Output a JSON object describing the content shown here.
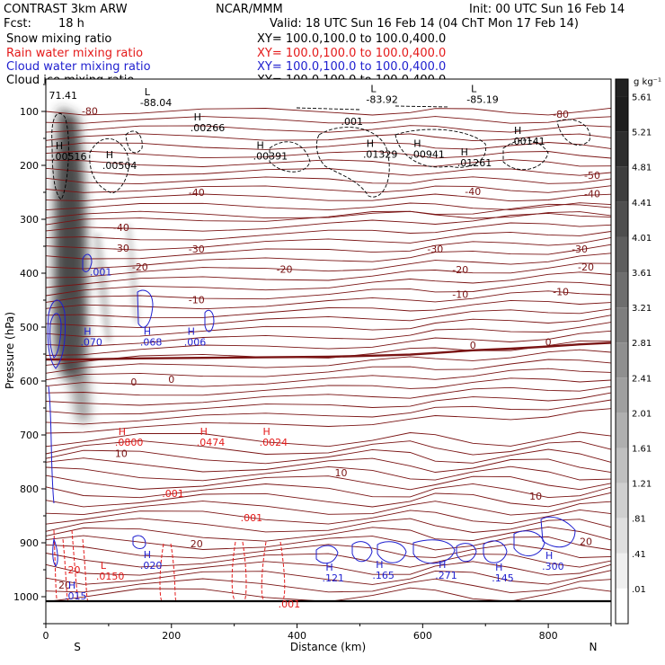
{
  "header": {
    "model": "CONTRAST   3km ARW",
    "org": "NCAR/MMM",
    "init": "Init: 00 UTC Sun 16 Feb 14",
    "fcst_label": "Fcst:",
    "fcst_value": "18 h",
    "valid": "Valid: 18 UTC Sun 16 Feb 14 (04 ChT Mon 17 Feb 14)"
  },
  "fields": [
    {
      "name": "Snow mixing ratio",
      "color": "#000000",
      "xy": "",
      "series_key": "snow"
    },
    {
      "name": "Rain water mixing ratio",
      "color": "#e41a1a",
      "xy": "XY=  100.0,100.0  to  100.0,400.0",
      "series_key": "rain"
    },
    {
      "name": "Cloud water mixing ratio",
      "color": "#1f1fcf",
      "xy": "XY=  100.0,100.0  to  100.0,400.0",
      "series_key": "cloud_water"
    },
    {
      "name": "Cloud ice mixing ratio",
      "color": "#000000",
      "xy": "XY=  100.0,100.0  to  100.0,400.0",
      "series_key": "cloud_ice"
    }
  ],
  "first_xy": "XY=  100.0,100.0  to  100.0,400.0",
  "colors": {
    "temperature": "#7a1414",
    "rain": "#e41a1a",
    "cloud_water": "#1f1fcf",
    "cloud_ice": "#000000",
    "terrain": "#000000",
    "snow_shade": "#333333"
  },
  "chart_data": {
    "type": "cross-section",
    "xlabel": "Distance (km)",
    "ylabel": "Pressure (hPa)",
    "x_range": [
      0,
      900
    ],
    "y_range": [
      1050,
      40
    ],
    "x_ticks": [
      0,
      200,
      400,
      600,
      800
    ],
    "y_ticks": [
      100,
      200,
      300,
      400,
      500,
      600,
      700,
      800,
      900,
      1000
    ],
    "x_end_labels": {
      "left": "S",
      "right": "N"
    },
    "colorbar": {
      "units": "g kg⁻¹",
      "levels": [
        "5.61",
        "5.21",
        "4.81",
        "4.41",
        "4.01",
        "3.61",
        "3.21",
        "2.81",
        "2.41",
        "2.01",
        "1.61",
        "1.21",
        ".81",
        ".41",
        ".01"
      ]
    },
    "temperature_labels": [
      {
        "x": 70,
        "p": 106,
        "text": "-80"
      },
      {
        "x": 820,
        "p": 112,
        "text": "-80"
      },
      {
        "x": 120,
        "p": 322,
        "text": "-40"
      },
      {
        "x": 240,
        "p": 257,
        "text": "-40"
      },
      {
        "x": 680,
        "p": 255,
        "text": "-40"
      },
      {
        "x": 870,
        "p": 259,
        "text": "-40"
      },
      {
        "x": 870,
        "p": 225,
        "text": "-50"
      },
      {
        "x": 120,
        "p": 360,
        "text": "-30"
      },
      {
        "x": 240,
        "p": 362,
        "text": "-30"
      },
      {
        "x": 620,
        "p": 362,
        "text": "-30"
      },
      {
        "x": 850,
        "p": 362,
        "text": "-30"
      },
      {
        "x": 150,
        "p": 395,
        "text": "-20"
      },
      {
        "x": 380,
        "p": 399,
        "text": "-20"
      },
      {
        "x": 660,
        "p": 400,
        "text": "-20"
      },
      {
        "x": 860,
        "p": 395,
        "text": "-20"
      },
      {
        "x": 240,
        "p": 456,
        "text": "-10"
      },
      {
        "x": 660,
        "p": 446,
        "text": "-10"
      },
      {
        "x": 820,
        "p": 441,
        "text": "-10"
      },
      {
        "x": 680,
        "p": 540,
        "text": "0"
      },
      {
        "x": 800,
        "p": 534,
        "text": "0"
      },
      {
        "x": 140,
        "p": 608,
        "text": "0"
      },
      {
        "x": 200,
        "p": 603,
        "text": "0"
      },
      {
        "x": 120,
        "p": 741,
        "text": "10"
      },
      {
        "x": 470,
        "p": 777,
        "text": "10"
      },
      {
        "x": 780,
        "p": 820,
        "text": "10"
      },
      {
        "x": 240,
        "p": 908,
        "text": "20"
      },
      {
        "x": 860,
        "p": 904,
        "text": "20"
      },
      {
        "x": 30,
        "p": 985,
        "text": "20"
      }
    ],
    "highs": [
      {
        "field": "cloud_ice",
        "x": 230,
        "p": 137,
        "label": ".00266"
      },
      {
        "field": "cloud_ice",
        "x": 10,
        "p": 190,
        "label": ".00516"
      },
      {
        "field": "cloud_ice",
        "x": 90,
        "p": 207,
        "label": ".00504"
      },
      {
        "field": "cloud_ice",
        "x": 330,
        "p": 189,
        "label": ".00391"
      },
      {
        "field": "cloud_ice",
        "x": 505,
        "p": 186,
        "label": ".01329"
      },
      {
        "field": "cloud_ice",
        "x": 580,
        "p": 186,
        "label": ".00941"
      },
      {
        "field": "cloud_ice",
        "x": 655,
        "p": 202,
        "label": ".01261"
      },
      {
        "field": "cloud_ice",
        "x": 740,
        "p": 162,
        "label": ".00141"
      },
      {
        "field": "rain",
        "x": 110,
        "p": 720,
        "label": ".0800"
      },
      {
        "field": "rain",
        "x": 240,
        "p": 720,
        "label": ".0474"
      },
      {
        "field": "rain",
        "x": 340,
        "p": 720,
        "label": ".0024"
      },
      {
        "field": "cloud_water",
        "x": 55,
        "p": 534,
        "label": ".070"
      },
      {
        "field": "cloud_water",
        "x": 150,
        "p": 534,
        "label": ".068"
      },
      {
        "field": "cloud_water",
        "x": 220,
        "p": 534,
        "label": ".006"
      },
      {
        "field": "cloud_water",
        "x": 150,
        "p": 948,
        "label": ".020"
      },
      {
        "field": "cloud_water",
        "x": 30,
        "p": 1005,
        "label": ".015"
      },
      {
        "field": "cloud_water",
        "x": 440,
        "p": 972,
        "label": ".121"
      },
      {
        "field": "cloud_water",
        "x": 520,
        "p": 967,
        "label": ".165"
      },
      {
        "field": "cloud_water",
        "x": 620,
        "p": 967,
        "label": ".271"
      },
      {
        "field": "cloud_water",
        "x": 710,
        "p": 972,
        "label": ".145"
      },
      {
        "field": "cloud_water",
        "x": 790,
        "p": 950,
        "label": ".300"
      }
    ],
    "lows": [
      {
        "field": "cloud_ice",
        "x": 510,
        "p": 84,
        "label": "-83.92"
      },
      {
        "field": "cloud_ice",
        "x": 670,
        "p": 84,
        "label": "-85.19"
      },
      {
        "field": "cloud_ice",
        "x": 150,
        "p": 90,
        "label": "-88.04"
      },
      {
        "field": "rain",
        "x": 80,
        "p": 968,
        "label": ".0150"
      }
    ],
    "contour_labels": [
      {
        "field": "cloud_ice",
        "x": 5,
        "p": 77,
        "text": "71.41"
      },
      {
        "field": "cloud_ice",
        "x": 470,
        "p": 125,
        "text": ".001"
      },
      {
        "field": "cloud_water",
        "x": 70,
        "p": 404,
        "text": ".001"
      },
      {
        "field": "rain",
        "x": 185,
        "p": 815,
        "text": ".001"
      },
      {
        "field": "rain",
        "x": 310,
        "p": 860,
        "text": ".001"
      },
      {
        "field": "rain",
        "x": 370,
        "p": 1020,
        "text": ".001"
      },
      {
        "field": "rain",
        "x": 35,
        "p": 957,
        "text": "20"
      }
    ],
    "zero_isotherm_p": [
      560,
      560,
      558,
      557,
      556,
      555,
      553,
      551,
      548,
      543,
      540,
      536,
      532,
      529
    ],
    "isotherm_x": [
      0,
      60,
      150,
      250,
      350,
      450,
      520,
      580,
      620,
      680,
      740,
      800,
      850,
      900
    ]
  }
}
